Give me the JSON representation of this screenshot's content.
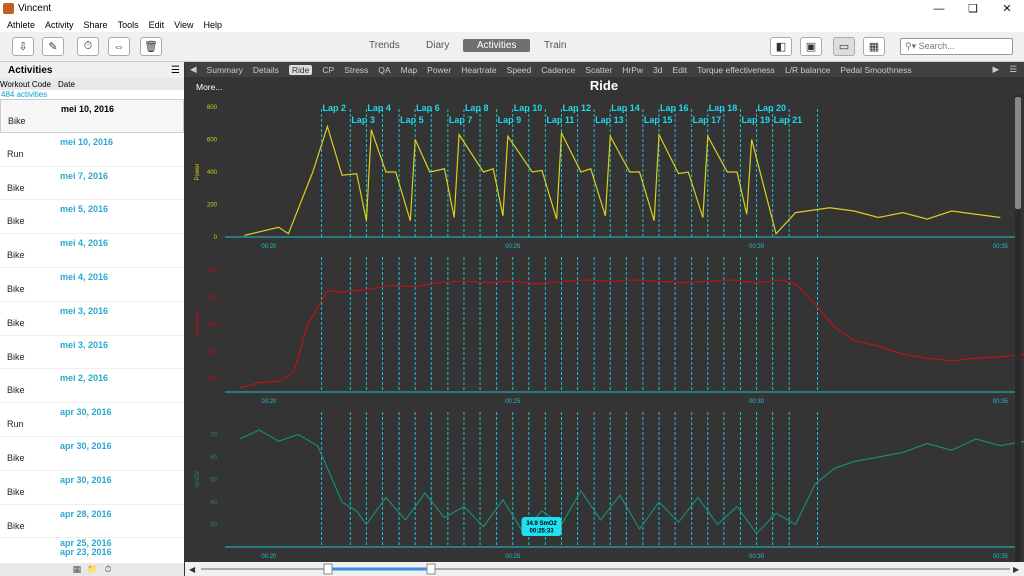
{
  "window": {
    "title": "Vincent"
  },
  "menu": [
    "Athlete",
    "Activity",
    "Share",
    "Tools",
    "Edit",
    "View",
    "Help"
  ],
  "toolbar": {
    "views": [
      "Trends",
      "Diary",
      "Activities",
      "Train"
    ],
    "active_view": "Activities",
    "search_placeholder": "Search..."
  },
  "sidebar": {
    "title": "Activities",
    "col_workout": "Workout Code",
    "col_date": "Date",
    "count": "484 activities",
    "items": [
      {
        "date": "mei 10, 2016",
        "type": "Bike"
      },
      {
        "date": "mei 10, 2016",
        "type": "Run"
      },
      {
        "date": "mei 7, 2016",
        "type": "Bike"
      },
      {
        "date": "mei 5, 2016",
        "type": "Bike"
      },
      {
        "date": "mei 4, 2016",
        "type": "Bike"
      },
      {
        "date": "mei 4, 2016",
        "type": "Bike"
      },
      {
        "date": "mei 3, 2016",
        "type": "Bike"
      },
      {
        "date": "mei 3, 2016",
        "type": "Bike"
      },
      {
        "date": "mei 2, 2016",
        "type": "Bike"
      },
      {
        "date": "apr 30, 2016",
        "type": "Run"
      },
      {
        "date": "apr 30, 2016",
        "type": "Bike"
      },
      {
        "date": "apr 30, 2016",
        "type": "Bike"
      },
      {
        "date": "apr 28, 2016",
        "type": "Bike"
      },
      {
        "date": "apr 25, 2016",
        "type": ""
      },
      {
        "date": "apr 23, 2016",
        "type": ""
      }
    ]
  },
  "tabs": [
    "Summary",
    "Details",
    "Ride",
    "CP",
    "Stress",
    "QA",
    "Map",
    "Power",
    "Heartrate",
    "Speed",
    "Cadence",
    "Scatter",
    "HrPw",
    "3d",
    "Edit",
    "Torque effectiveness",
    "L/R balance",
    "Pedal Smoothness"
  ],
  "active_tab": "Ride",
  "ride": {
    "title": "Ride",
    "more": "More...",
    "tooltip": [
      "34.9 SmO2",
      "00:25:33"
    ]
  },
  "chart_data": [
    {
      "type": "line",
      "ylabel": "Power",
      "ylim": [
        0,
        800
      ],
      "yticks": [
        0,
        200,
        400,
        600,
        800
      ],
      "xticks": [
        "00:20",
        "00:25",
        "00:30",
        "00:35"
      ],
      "color": "#d8d020",
      "laps": [
        "Lap 2",
        "Lap 3",
        "Lap 4",
        "Lap 5",
        "Lap 6",
        "Lap 7",
        "Lap 8",
        "Lap 9",
        "Lap 10",
        "Lap 11",
        "Lap 12",
        "Lap 13",
        "Lap 14",
        "Lap 15",
        "Lap 16",
        "Lap 17",
        "Lap 18",
        "Lap 19",
        "Lap 20",
        "Lap 21"
      ],
      "x": [
        19.5,
        20.2,
        20.4,
        20.9,
        21.2,
        21.5,
        21.8,
        22.0,
        22.1,
        22.4,
        22.6,
        22.9,
        23.0,
        23.3,
        23.6,
        23.8,
        23.9,
        24.4,
        24.6,
        24.8,
        24.9,
        25.4,
        25.6,
        25.9,
        26.0,
        26.4,
        26.6,
        26.9,
        27.0,
        27.4,
        27.6,
        27.9,
        28.0,
        28.4,
        28.6,
        28.9,
        29.0,
        29.4,
        29.6,
        29.8,
        29.9,
        30.4,
        30.8,
        31.5,
        32.0,
        32.5,
        33.0,
        33.5,
        34.0,
        34.5,
        35.0
      ],
      "values": [
        10,
        60,
        20,
        400,
        680,
        380,
        390,
        100,
        660,
        400,
        400,
        100,
        600,
        400,
        420,
        120,
        630,
        400,
        420,
        130,
        620,
        400,
        410,
        110,
        640,
        400,
        420,
        130,
        620,
        400,
        400,
        100,
        630,
        390,
        400,
        120,
        620,
        400,
        400,
        140,
        600,
        20,
        150,
        180,
        160,
        120,
        150,
        110,
        160,
        140,
        120
      ]
    },
    {
      "type": "line",
      "ylabel": "Heartrate",
      "ylim": [
        90,
        190
      ],
      "yticks": [
        100,
        120,
        140,
        160,
        180
      ],
      "xticks": [
        "00:20",
        "00:25",
        "00:30",
        "00:35"
      ],
      "color": "#c0101a",
      "x": [
        19.4,
        19.8,
        20.2,
        20.5,
        20.8,
        21.2,
        21.5,
        22.0,
        22.5,
        23.0,
        23.5,
        24.0,
        24.5,
        25.0,
        25.5,
        26.0,
        26.5,
        27.0,
        27.5,
        28.0,
        28.5,
        29.0,
        29.5,
        30.0,
        30.5,
        30.8,
        31.2,
        31.6,
        32.0,
        32.5,
        33.0,
        33.5,
        34.0,
        34.5,
        35.0,
        35.5
      ],
      "values": [
        93,
        97,
        98,
        104,
        140,
        165,
        164,
        166,
        169,
        168,
        171,
        172,
        171,
        172,
        170,
        172,
        173,
        172,
        173,
        172,
        171,
        172,
        173,
        171,
        173,
        170,
        155,
        138,
        128,
        124,
        118,
        115,
        113,
        115,
        116,
        118
      ]
    },
    {
      "type": "line",
      "ylabel": "SmO2",
      "ylim": [
        20,
        80
      ],
      "yticks": [
        30,
        40,
        50,
        60,
        70
      ],
      "xticks": [
        "00:20",
        "00:25",
        "00:30",
        "00:35"
      ],
      "color": "#1a8a70",
      "x": [
        19.4,
        19.8,
        20.2,
        20.6,
        21.0,
        21.2,
        21.5,
        21.8,
        22.0,
        22.4,
        22.8,
        23.2,
        23.6,
        24.0,
        24.4,
        24.8,
        25.2,
        25.6,
        26.0,
        26.4,
        26.8,
        27.2,
        27.6,
        28.0,
        28.4,
        28.8,
        29.2,
        29.6,
        30.0,
        30.4,
        30.8,
        31.2,
        31.6,
        32.0,
        32.5,
        33.0,
        33.5,
        34.0,
        34.5,
        35.0,
        35.5
      ],
      "values": [
        68,
        72,
        67,
        70,
        65,
        55,
        40,
        36,
        30,
        42,
        32,
        44,
        33,
        38,
        29,
        41,
        27,
        36,
        30,
        45,
        32,
        43,
        28,
        40,
        31,
        42,
        30,
        38,
        26,
        35,
        30,
        48,
        55,
        58,
        60,
        62,
        66,
        63,
        68,
        65,
        67
      ]
    }
  ],
  "lap_times": [
    21.08,
    21.67,
    22.0,
    22.33,
    22.67,
    23.0,
    23.33,
    23.67,
    24.0,
    24.33,
    24.67,
    25.0,
    25.33,
    25.67,
    26.0,
    26.33,
    26.67,
    27.0,
    27.33,
    27.67,
    28.0,
    28.33,
    28.67,
    29.0,
    29.33,
    29.67,
    30.0,
    30.33,
    30.67,
    31.25
  ],
  "lap_label_positions": [
    21.08,
    21.67,
    22.0,
    22.67,
    23.0,
    23.67,
    24.0,
    24.67,
    25.0,
    25.67,
    26.0,
    26.67,
    27.0,
    27.67,
    28.0,
    28.67,
    29.0,
    29.67,
    30.0,
    30.33
  ],
  "xrange": [
    19.1,
    35.3
  ]
}
